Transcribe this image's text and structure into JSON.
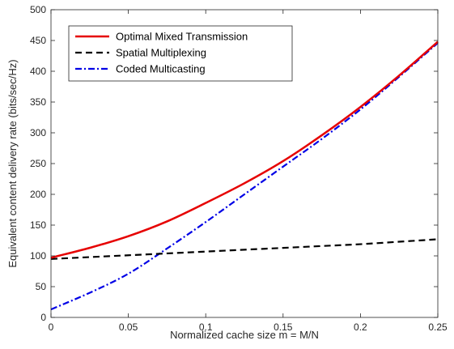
{
  "chart_data": {
    "type": "line",
    "title": "",
    "xlabel": "Normalized cache size m = M/N",
    "ylabel": "Equivalent content delivery rate (bits/sec/Hz)",
    "xlim": [
      0,
      0.25
    ],
    "ylim": [
      0,
      500
    ],
    "xticks": [
      0,
      0.05,
      0.1,
      0.15,
      0.2,
      0.25
    ],
    "xtick_labels": [
      "0",
      "0.05",
      "0.1",
      "0.15",
      "0.2",
      "0.25"
    ],
    "yticks": [
      0,
      50,
      100,
      150,
      200,
      250,
      300,
      350,
      400,
      450,
      500
    ],
    "ytick_labels": [
      "0",
      "50",
      "100",
      "150",
      "200",
      "250",
      "300",
      "350",
      "400",
      "450",
      "500"
    ],
    "grid": false,
    "legend_position": "top-left",
    "x": [
      0,
      0.025,
      0.05,
      0.075,
      0.1,
      0.125,
      0.15,
      0.175,
      0.2,
      0.225,
      0.25
    ],
    "series": [
      {
        "name": "Optimal Mixed Transmission",
        "color": "#e60000",
        "style": "solid",
        "values": [
          97,
          113,
          132,
          156,
          186,
          218,
          254,
          296,
          342,
          393,
          448
        ]
      },
      {
        "name": "Spatial Multiplexing",
        "color": "#000000",
        "style": "dashed",
        "values": [
          95,
          98,
          101,
          104,
          107,
          110,
          113,
          116,
          119,
          123,
          127
        ]
      },
      {
        "name": "Coded Multicasting",
        "color": "#0000e6",
        "style": "dashdot",
        "values": [
          13,
          40,
          71,
          112,
          155,
          200,
          245,
          290,
          338,
          391,
          446
        ]
      }
    ]
  }
}
